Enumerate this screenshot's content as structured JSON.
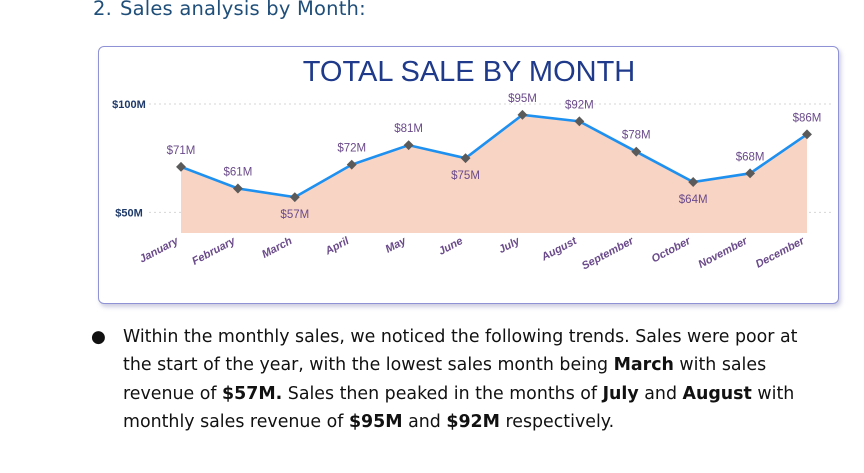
{
  "heading": {
    "number": "2.",
    "text": "Sales analysis by Month:"
  },
  "colors": {
    "line": "#1e90ef",
    "area": "#f8d4c4",
    "marker": "#5a5a5a",
    "title": "#1f3a8a",
    "label": "#6a4a8a",
    "card_border": "#8f93d6"
  },
  "chart_data": {
    "type": "area",
    "title": "TOTAL SALE BY MONTH",
    "categories": [
      "January",
      "February",
      "March",
      "April",
      "May",
      "June",
      "July",
      "August",
      "September",
      "October",
      "November",
      "December"
    ],
    "values": [
      71,
      61,
      57,
      72,
      81,
      75,
      95,
      92,
      78,
      64,
      68,
      86
    ],
    "data_labels": [
      "$71M",
      "$61M",
      "$57M",
      "$72M",
      "$81M",
      "$75M",
      "$95M",
      "$92M",
      "$78M",
      "$64M",
      "$68M",
      "$86M"
    ],
    "y_ticks": [
      {
        "value": 100,
        "label": "$100M"
      },
      {
        "value": 50,
        "label": "$50M"
      }
    ],
    "ylim": [
      40,
      100
    ],
    "grid": "dotted horizontal at tick values",
    "legend": "none"
  },
  "paragraph": {
    "parts": [
      {
        "text": "Within the monthly sales, we noticed the following trends. Sales were poor at the start of the year, with the lowest sales month being ",
        "bold": false
      },
      {
        "text": "March",
        "bold": true
      },
      {
        "text": " with sales revenue of ",
        "bold": false
      },
      {
        "text": "$57M.",
        "bold": true
      },
      {
        "text": " Sales then peaked in the months of ",
        "bold": false
      },
      {
        "text": "July",
        "bold": true
      },
      {
        "text": " and ",
        "bold": false
      },
      {
        "text": "August",
        "bold": true
      },
      {
        "text": " with monthly sales revenue of ",
        "bold": false
      },
      {
        "text": "$95M",
        "bold": true
      },
      {
        "text": " and ",
        "bold": false
      },
      {
        "text": "$92M",
        "bold": true
      },
      {
        "text": " respectively.",
        "bold": false
      }
    ]
  }
}
